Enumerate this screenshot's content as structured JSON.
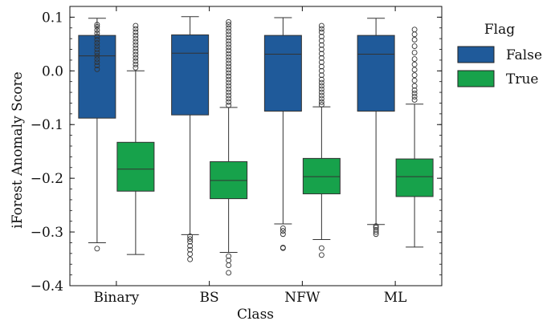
{
  "chart_data": {
    "type": "box",
    "xlabel": "Class",
    "ylabel": "iForest Anomaly Score",
    "categories": [
      "Binary",
      "BS",
      "NFW",
      "ML"
    ],
    "ylim": [
      -0.4,
      0.12
    ],
    "yticks": [
      -0.4,
      -0.3,
      -0.2,
      -0.1,
      0.0,
      0.1
    ],
    "ytick_labels": [
      "−0.4",
      "−0.3",
      "−0.2",
      "−0.1",
      "0.0",
      "0.1"
    ],
    "legend": {
      "title": "Flag",
      "placement": "outside-right",
      "entries": [
        "False",
        "True"
      ]
    },
    "colors": {
      "False": "#1f5a9a",
      "True": "#17a24b"
    },
    "series": [
      {
        "name": "False",
        "boxes": [
          {
            "whisker_low": -0.32,
            "q1": -0.088,
            "median": 0.028,
            "q3": 0.066,
            "whisker_high": 0.098,
            "outliers": [
              -0.331,
              0.003,
              0.01,
              0.016,
              0.022,
              0.028,
              0.034,
              0.04,
              0.046,
              0.052,
              0.058,
              0.064,
              0.07,
              0.076,
              0.082,
              0.086
            ]
          },
          {
            "whisker_low": -0.305,
            "q1": -0.082,
            "median": 0.033,
            "q3": 0.067,
            "whisker_high": 0.101,
            "outliers": [
              -0.308,
              -0.313,
              -0.318,
              -0.326,
              -0.333,
              -0.341,
              -0.351
            ]
          },
          {
            "whisker_low": -0.285,
            "q1": -0.075,
            "median": 0.031,
            "q3": 0.066,
            "whisker_high": 0.099,
            "outliers": [
              -0.293,
              -0.298,
              -0.304,
              -0.329,
              -0.33
            ]
          },
          {
            "whisker_low": -0.286,
            "q1": -0.075,
            "median": 0.031,
            "q3": 0.066,
            "whisker_high": 0.098,
            "outliers": [
              -0.289,
              -0.292,
              -0.296,
              -0.3,
              -0.304
            ]
          }
        ]
      },
      {
        "name": "True",
        "boxes": [
          {
            "whisker_low": -0.342,
            "q1": -0.224,
            "median": -0.183,
            "q3": -0.133,
            "whisker_high": 0.0,
            "outliers": [
              0.006,
              0.012,
              0.018,
              0.024,
              0.03,
              0.036,
              0.042,
              0.048,
              0.054,
              0.06,
              0.066,
              0.072,
              0.078,
              0.084
            ]
          },
          {
            "whisker_low": -0.338,
            "q1": -0.238,
            "median": -0.204,
            "q3": -0.169,
            "whisker_high": -0.068,
            "outliers": [
              -0.345,
              -0.353,
              -0.362,
              -0.376,
              -0.064,
              -0.058,
              -0.052,
              -0.046,
              -0.04,
              -0.034,
              -0.028,
              -0.022,
              -0.016,
              -0.01,
              -0.004,
              0.002,
              0.008,
              0.014,
              0.02,
              0.026,
              0.032,
              0.038,
              0.044,
              0.05,
              0.056,
              0.062,
              0.068,
              0.074,
              0.08,
              0.086,
              0.091
            ]
          },
          {
            "whisker_low": -0.314,
            "q1": -0.229,
            "median": -0.197,
            "q3": -0.163,
            "whisker_high": -0.067,
            "outliers": [
              -0.33,
              -0.343,
              -0.063,
              -0.058,
              -0.052,
              -0.046,
              -0.04,
              -0.034,
              -0.028,
              -0.022,
              -0.016,
              -0.008,
              0.0,
              0.008,
              0.016,
              0.024,
              0.032,
              0.04,
              0.048,
              0.056,
              0.064,
              0.072,
              0.078,
              0.084
            ]
          },
          {
            "whisker_low": -0.328,
            "q1": -0.234,
            "median": -0.197,
            "q3": -0.164,
            "whisker_high": -0.062,
            "outliers": [
              -0.054,
              -0.048,
              -0.042,
              -0.036,
              -0.028,
              -0.018,
              -0.008,
              0.002,
              0.012,
              0.022,
              0.034,
              0.046,
              0.058,
              0.068,
              0.077
            ]
          }
        ]
      }
    ]
  }
}
